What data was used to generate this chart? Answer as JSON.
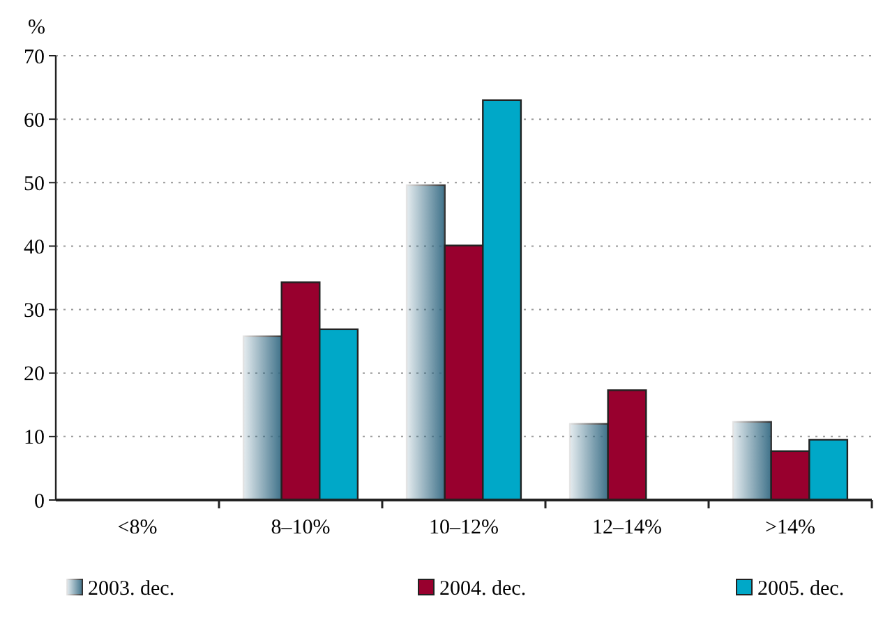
{
  "chart_data": {
    "type": "bar",
    "ylabel": "%",
    "categories": [
      "<8%",
      "8–10%",
      "10–12%",
      "12–14%",
      ">14%"
    ],
    "series": [
      {
        "name": "2003. dec.",
        "color": "#2f6680",
        "values": [
          null,
          25.8,
          49.6,
          12.0,
          12.3
        ]
      },
      {
        "name": "2004. dec.",
        "color": "#98002e",
        "values": [
          null,
          34.3,
          40.1,
          17.3,
          7.7
        ]
      },
      {
        "name": "2005. dec.",
        "color": "#00a8c8",
        "values": [
          null,
          26.9,
          63.0,
          null,
          9.5
        ]
      }
    ],
    "ylim": [
      0,
      70
    ],
    "yticks": [
      0,
      10,
      20,
      30,
      40,
      50,
      60,
      70
    ],
    "grid": "y",
    "legend": "bottom"
  }
}
